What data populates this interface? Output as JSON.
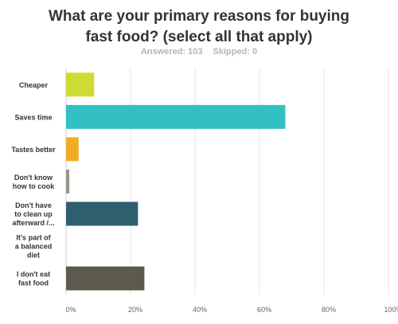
{
  "header": {
    "title_line1": "What are your primary reasons for buying",
    "title_line2": "fast food? (select all that apply)",
    "answered": "Answered: 103",
    "skipped": "Skipped: 0"
  },
  "chart_data": {
    "type": "bar",
    "orientation": "horizontal",
    "categories": [
      [
        "Cheaper"
      ],
      [
        "Saves time"
      ],
      [
        "Tastes better"
      ],
      [
        "Don't know",
        "how to cook"
      ],
      [
        "Don't have",
        "to clean up",
        "afterward /..."
      ],
      [
        "It's part of",
        "a balanced",
        "diet"
      ],
      [
        "I don't eat",
        "fast food"
      ]
    ],
    "values": [
      8.7,
      68.0,
      3.9,
      1.0,
      22.3,
      0.0,
      24.3
    ],
    "colors": [
      "#cedb33",
      "#33c0c2",
      "#f2ad24",
      "#8f9a8c",
      "#2e5f6e",
      "#8aa4a6",
      "#5c5a4d"
    ],
    "xlim": [
      0,
      100
    ],
    "ticks": [
      "0%",
      "20%",
      "40%",
      "60%",
      "80%",
      "100%"
    ],
    "tick_values": [
      0,
      20,
      40,
      60,
      80,
      100
    ],
    "grid": true
  }
}
